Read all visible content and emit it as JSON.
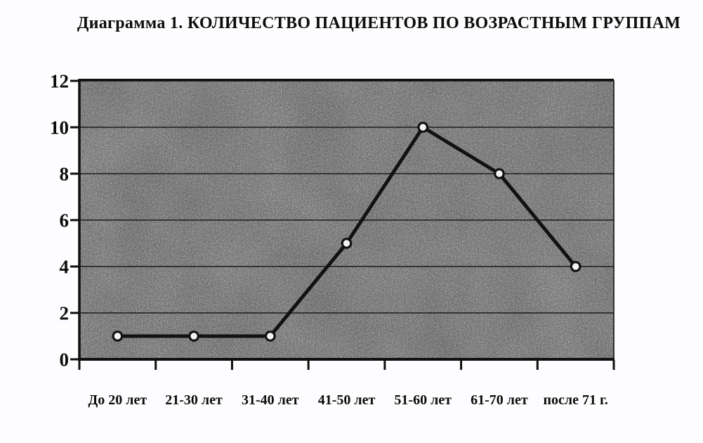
{
  "page": {
    "background_color": "#fdfcfe"
  },
  "chart_data": {
    "type": "line",
    "title": "Диаграмма 1. КОЛИЧЕСТВО ПАЦИЕНТОВ ПО ВОЗРАСТНЫМ ГРУППАМ",
    "categories": [
      "До 20 лет",
      "21-30 лет",
      "31-40 лет",
      "41-50 лет",
      "51-60 лет",
      "61-70 лет",
      "после 71 г."
    ],
    "values": [
      1,
      1,
      1,
      5,
      10,
      8,
      4
    ],
    "series": [
      {
        "name": "Количество пациентов",
        "values": [
          1,
          1,
          1,
          5,
          10,
          8,
          4
        ]
      }
    ],
    "xlabel": "",
    "ylabel": "",
    "ylim": [
      0,
      12
    ],
    "yticks": [
      0,
      2,
      4,
      6,
      8,
      10,
      12
    ],
    "grid": "horizontal",
    "legend": "none",
    "marker": "circle",
    "styles": {
      "plot_bg": "#8f8f8f",
      "line_color": "#121212",
      "marker_fill": "#f4f4f4",
      "marker_stroke": "#121212",
      "axis_color": "#0f0f0f",
      "grid_color": "#1c1c1c",
      "text_color": "#0d0b0b"
    }
  }
}
